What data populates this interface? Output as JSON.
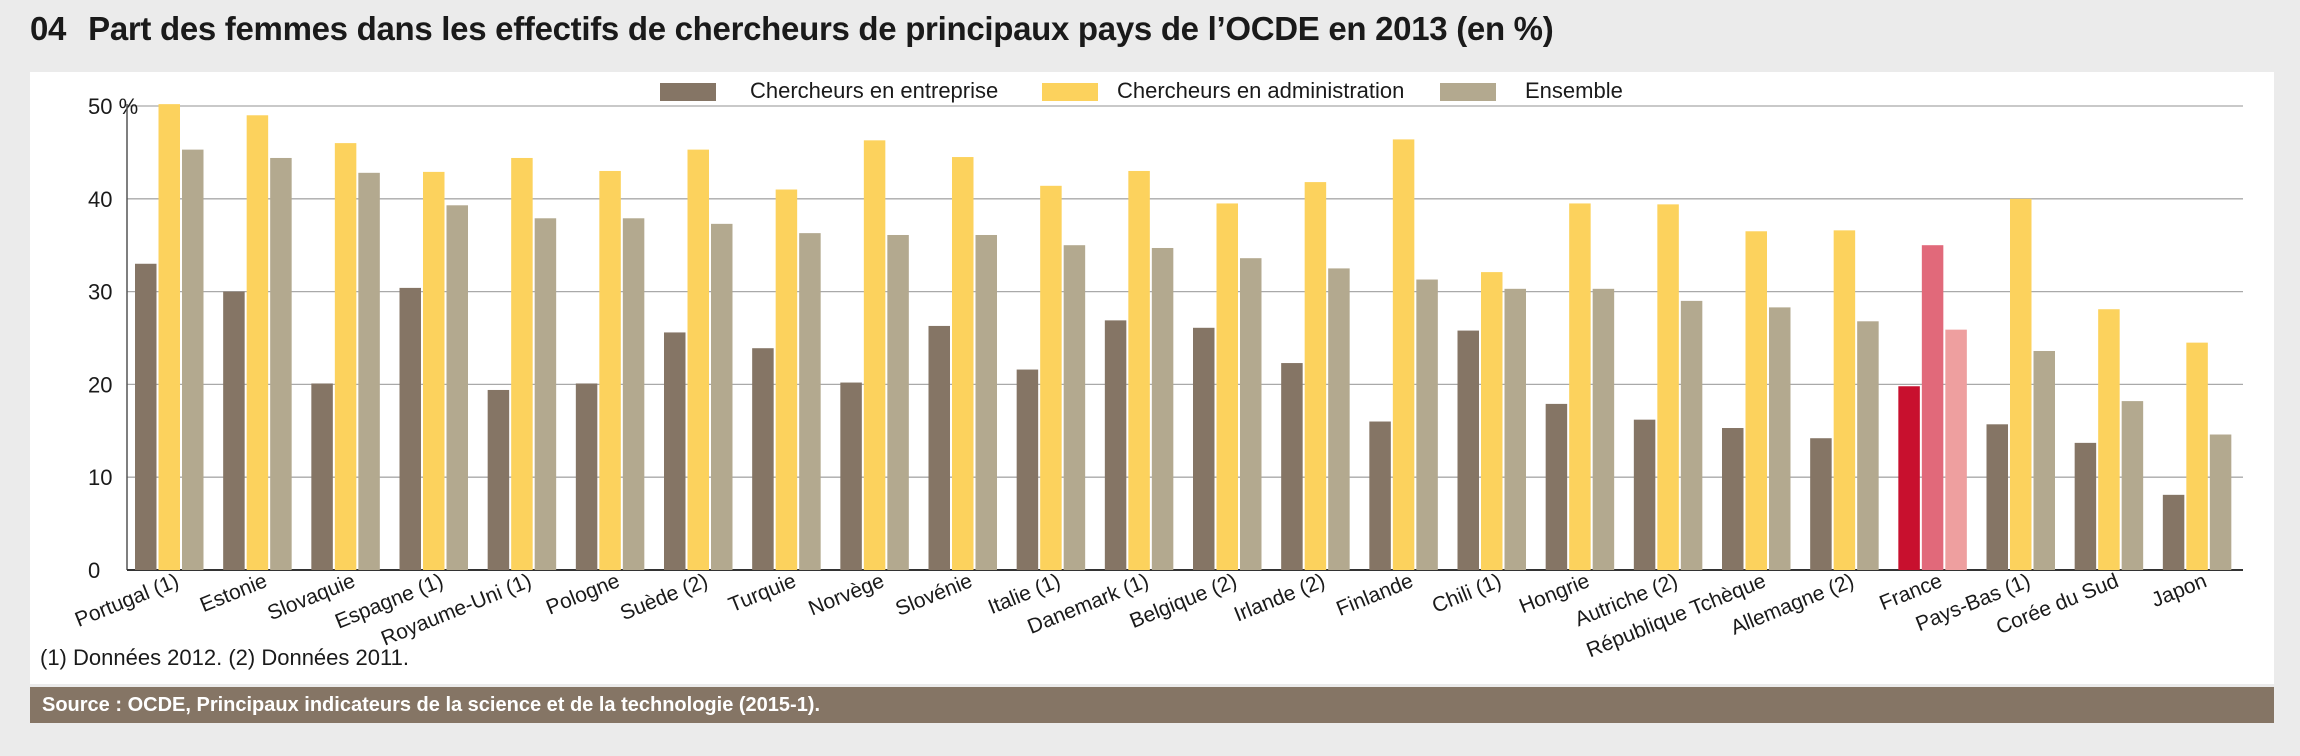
{
  "title": {
    "number": "04",
    "text": "Part des femmes dans les effectifs de chercheurs de principaux pays de l’OCDE en 2013 (en %)"
  },
  "footnote": "(1) Données 2012. (2) Données 2011.",
  "source": "Source : OCDE, Principaux indicateurs de la science et de la technologie (2015-1).",
  "colors": {
    "entreprise": "#857565",
    "administration": "#fcd25d",
    "ensemble": "#b3a98f",
    "france_entreprise": "#c8102e",
    "france_administration": "#e1697a",
    "france_ensemble": "#ee9f9f"
  },
  "chart_data": {
    "type": "bar",
    "title": "Part des femmes dans les effectifs de chercheurs de principaux pays de l’OCDE en 2013 (en %)",
    "xlabel": "",
    "ylabel": "",
    "ylim": [
      0,
      50
    ],
    "yticks": [
      {
        "value": 0,
        "label": "0"
      },
      {
        "value": 10,
        "label": "10"
      },
      {
        "value": 20,
        "label": "20"
      },
      {
        "value": 30,
        "label": "30"
      },
      {
        "value": 40,
        "label": "40"
      },
      {
        "value": 50,
        "label": "50 %"
      }
    ],
    "categories": [
      "Portugal (1)",
      "Estonie",
      "Slovaquie",
      "Espagne  (1)",
      "Royaume-Uni (1)",
      "Pologne",
      "Suède (2)",
      "Turquie",
      "Norvège",
      "Slovénie",
      "Italie (1)",
      "Danemark (1)",
      "Belgique (2)",
      "Irlande (2)",
      "Finlande",
      "Chili (1)",
      "Hongrie",
      "Autriche (2)",
      "République Tchèque",
      "Allemagne (2)",
      "France",
      "Pays-Bas (1)",
      "Corée du Sud",
      "Japon"
    ],
    "highlight": "France",
    "series": [
      {
        "name": "Chercheurs en entreprise",
        "key": "entreprise",
        "values": [
          33,
          30,
          20.1,
          30.4,
          19.4,
          20.1,
          25.6,
          23.9,
          20.2,
          26.3,
          21.6,
          26.9,
          26.1,
          22.3,
          16,
          25.8,
          17.9,
          16.2,
          15.3,
          14.2,
          19.8,
          15.7,
          13.7,
          8.1
        ]
      },
      {
        "name": "Chercheurs en administration",
        "key": "administration",
        "values": [
          50.2,
          49,
          46,
          42.9,
          44.4,
          43,
          45.3,
          41,
          46.3,
          44.5,
          41.4,
          43,
          39.5,
          41.8,
          46.4,
          32.1,
          39.5,
          39.4,
          36.5,
          36.6,
          35,
          40,
          28.1,
          24.5
        ]
      },
      {
        "name": "Ensemble",
        "key": "ensemble",
        "values": [
          45.3,
          44.4,
          42.8,
          39.3,
          37.9,
          37.9,
          37.3,
          36.3,
          36.1,
          36.1,
          35,
          34.7,
          33.6,
          32.5,
          31.3,
          30.3,
          30.3,
          29,
          28.3,
          26.8,
          25.9,
          23.6,
          18.2,
          14.6
        ]
      }
    ],
    "legend": {
      "position": "top-center"
    }
  }
}
